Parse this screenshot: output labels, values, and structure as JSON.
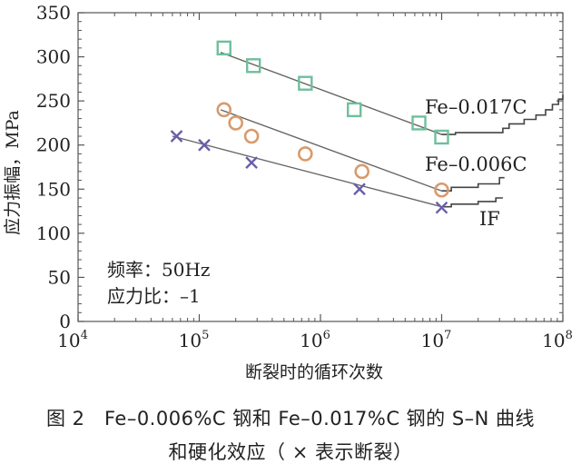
{
  "chart_data": {
    "type": "scatter",
    "title": "",
    "xlabel": "断裂时的循环次数",
    "ylabel": "应力振幅，MPa",
    "xscale": "log",
    "xlim": [
      10000,
      100000000
    ],
    "ylim": [
      0,
      350
    ],
    "xticks": [
      {
        "value": 10000,
        "base": "10",
        "exp": "4"
      },
      {
        "value": 100000,
        "base": "10",
        "exp": "5"
      },
      {
        "value": 1000000,
        "base": "10",
        "exp": "6"
      },
      {
        "value": 10000000,
        "base": "10",
        "exp": "7"
      },
      {
        "value": 100000000,
        "base": "10",
        "exp": "8"
      }
    ],
    "yticks": [
      {
        "value": 0,
        "label": "0"
      },
      {
        "value": 50,
        "label": "50"
      },
      {
        "value": 100,
        "label": "100"
      },
      {
        "value": 150,
        "label": "150"
      },
      {
        "value": 200,
        "label": "200"
      },
      {
        "value": 250,
        "label": "250"
      },
      {
        "value": 300,
        "label": "300"
      },
      {
        "value": 350,
        "label": "350"
      }
    ],
    "series": [
      {
        "name": "Fe-0.017C",
        "marker": "square",
        "color": "#6fbf9c",
        "points": [
          [
            160000,
            310
          ],
          [
            280000,
            290
          ],
          [
            750000,
            270
          ],
          [
            1900000,
            240
          ],
          [
            6500000,
            225
          ],
          [
            10000000,
            209
          ]
        ],
        "fit": [
          [
            150000,
            305
          ],
          [
            10000000,
            212
          ]
        ],
        "runout": [
          [
            10000000,
            212
          ],
          [
            13000000,
            212
          ],
          [
            13000000,
            214
          ],
          [
            32000000,
            214
          ],
          [
            32000000,
            219
          ],
          [
            36000000,
            219
          ],
          [
            36000000,
            224
          ],
          [
            48000000,
            224
          ],
          [
            48000000,
            229
          ],
          [
            60000000,
            229
          ],
          [
            60000000,
            234
          ],
          [
            72000000,
            234
          ],
          [
            72000000,
            240
          ],
          [
            82000000,
            240
          ],
          [
            82000000,
            246
          ],
          [
            92000000,
            246
          ],
          [
            92000000,
            252
          ],
          [
            100000000,
            252
          ],
          [
            100000000,
            257
          ]
        ]
      },
      {
        "name": "Fe-0.006C",
        "marker": "circle",
        "color": "#d99a6a",
        "points": [
          [
            160000,
            240
          ],
          [
            200000,
            225
          ],
          [
            270000,
            210
          ],
          [
            750000,
            190
          ],
          [
            2200000,
            170
          ],
          [
            10000000,
            149
          ]
        ],
        "fit": [
          [
            150000,
            240
          ],
          [
            10000000,
            148
          ]
        ],
        "runout": [
          [
            10000000,
            148
          ],
          [
            12000000,
            148
          ],
          [
            12000000,
            152
          ],
          [
            20000000,
            152
          ],
          [
            20000000,
            156
          ],
          [
            30000000,
            156
          ],
          [
            30000000,
            163
          ],
          [
            33000000,
            163
          ]
        ]
      },
      {
        "name": "IF",
        "marker": "x",
        "color": "#6a5fa8",
        "points": [
          [
            65000,
            210
          ],
          [
            110000,
            200
          ],
          [
            270000,
            180
          ],
          [
            2100000,
            150
          ],
          [
            10000000,
            129
          ]
        ],
        "fit": [
          [
            60000,
            210
          ],
          [
            10000000,
            130
          ]
        ],
        "runout": [
          [
            10000000,
            130
          ],
          [
            12000000,
            130
          ],
          [
            12000000,
            133
          ],
          [
            20000000,
            133
          ],
          [
            20000000,
            136
          ],
          [
            28000000,
            136
          ],
          [
            28000000,
            140
          ],
          [
            32000000,
            140
          ]
        ]
      }
    ],
    "series_labels": [
      {
        "name": "Fe-0.017C",
        "text": "Fe–0.017C"
      },
      {
        "name": "Fe-0.006C",
        "text": "Fe–0.006C"
      },
      {
        "name": "IF",
        "text": "IF"
      }
    ],
    "annotations": {
      "frequency": "频率：50Hz",
      "stress_ratio": "应力比：–1"
    }
  },
  "caption": {
    "line1": "图 2　Fe–0.006%C 钢和 Fe–0.017%C 钢的 S–N 曲线",
    "line2": "和硬化效应（ × 表示断裂）"
  }
}
